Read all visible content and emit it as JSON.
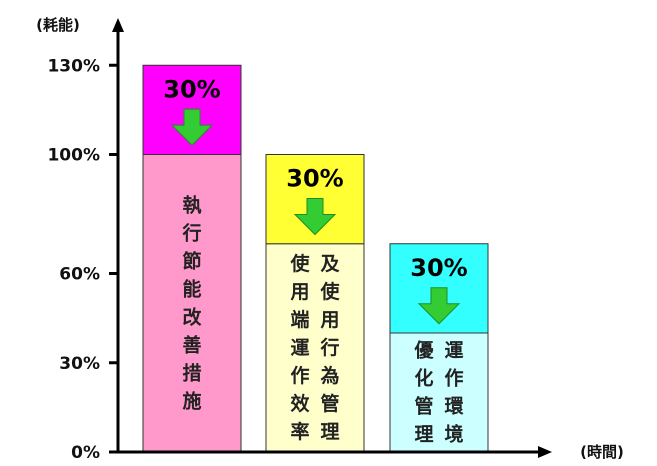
{
  "chart_data": {
    "type": "bar",
    "ylabel": "(耗能)",
    "xlabel": "(時間)",
    "ylim": [
      0,
      130
    ],
    "y_ticks": [
      {
        "value": 0,
        "label": "0%"
      },
      {
        "value": 30,
        "label": "30%"
      },
      {
        "value": 60,
        "label": "60%"
      },
      {
        "value": 100,
        "label": "100%"
      },
      {
        "value": 130,
        "label": "130%"
      }
    ],
    "bars": [
      {
        "label_lines": [
          "執行節能改善措施"
        ],
        "base": 100,
        "reduction": 30,
        "reduction_label": "30%",
        "base_color": "#ff99cc",
        "top_color": "#ff00ff"
      },
      {
        "label_lines": [
          "及使用行為管理",
          "使用端運作效率"
        ],
        "base": 70,
        "reduction": 30,
        "reduction_label": "30%",
        "base_color": "#ffffcc",
        "top_color": "#ffff33"
      },
      {
        "label_lines": [
          "運作環境",
          "優化管理"
        ],
        "base": 40,
        "reduction": 30,
        "reduction_label": "30%",
        "base_color": "#ccffff",
        "top_color": "#33ffff"
      }
    ],
    "arrow_color": "#33cc33"
  }
}
